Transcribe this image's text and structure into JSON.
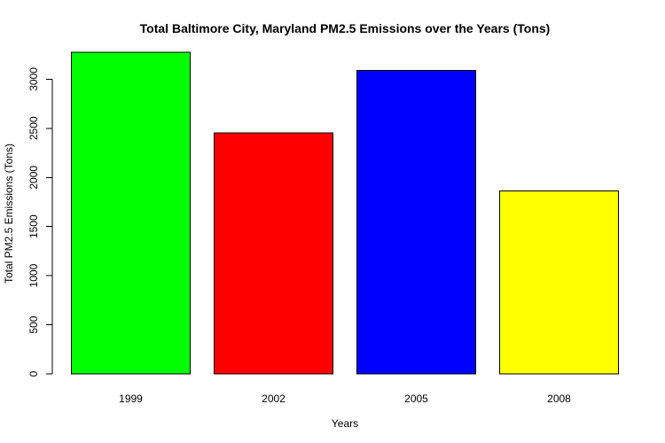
{
  "chart_data": {
    "type": "bar",
    "title": "Total Baltimore City, Maryland PM2.5 Emissions over the Years (Tons)",
    "xlabel": "Years",
    "ylabel": "Total PM2.5 Emissions (Tons)",
    "categories": [
      "1999",
      "2002",
      "2005",
      "2008"
    ],
    "values": [
      3274,
      2454,
      3091,
      1862
    ],
    "colors": [
      "#00ff00",
      "#ff0000",
      "#0000ff",
      "#ffff00"
    ],
    "y_ticks": [
      0,
      500,
      1000,
      1500,
      2000,
      2500,
      3000
    ],
    "ylim": [
      0,
      3274
    ],
    "grid": false,
    "legend": "none"
  }
}
